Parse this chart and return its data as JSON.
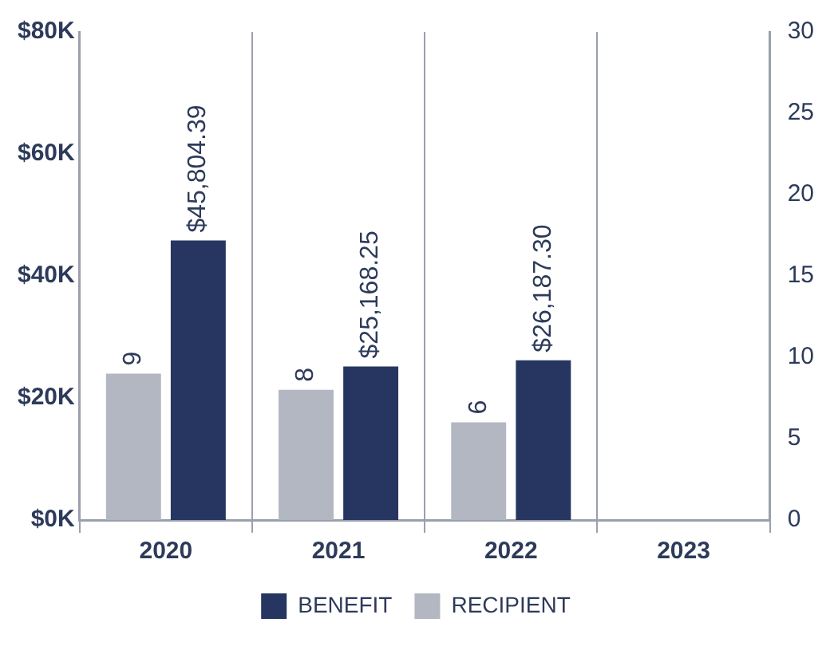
{
  "chart_data": {
    "type": "bar",
    "categories": [
      "2020",
      "2021",
      "2022",
      "2023"
    ],
    "series": [
      {
        "name": "RECIPIENT",
        "color": "#b3b7c1",
        "axis": "y2",
        "values": [
          9,
          8,
          6,
          null
        ],
        "value_labels": [
          "9",
          "8",
          "6",
          null
        ]
      },
      {
        "name": "BENEFIT",
        "color": "#263660",
        "values": [
          45804.39,
          25168.25,
          26187.3,
          null
        ],
        "value_labels": [
          "$45,804.39",
          "$25,168.25",
          "$26,187.30",
          null
        ]
      }
    ],
    "ylim": [
      0,
      80000
    ],
    "yticks": [
      {
        "value": 0,
        "label": "$0K"
      },
      {
        "value": 20000,
        "label": "$20K"
      },
      {
        "value": 40000,
        "label": "$40K"
      },
      {
        "value": 60000,
        "label": "$60K"
      },
      {
        "value": 80000,
        "label": "$80K"
      }
    ],
    "y2lim": [
      0,
      30
    ],
    "y2ticks": [
      0,
      5,
      10,
      15,
      20,
      25,
      30
    ],
    "grid": "x",
    "legend": "bottom"
  }
}
